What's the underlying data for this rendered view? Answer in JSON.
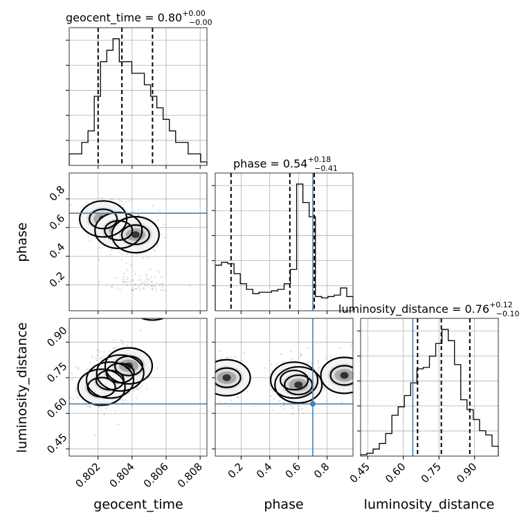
{
  "chart_data": {
    "type": "corner",
    "parameters": [
      {
        "name": "geocent_time",
        "label": "geocent_time",
        "range": [
          0.8003,
          0.8084
        ],
        "ticks": [
          0.802,
          0.804,
          0.806,
          0.808
        ],
        "tick_labels": [
          "0.802",
          "0.804",
          "0.806",
          "0.808"
        ],
        "truth": null,
        "title_main": "geocent_time = 0.80",
        "title_sup": "+0.00",
        "title_sub": "−0.00",
        "quantiles": [
          0.802,
          0.8034,
          0.8052
        ],
        "hist": [
          1,
          1,
          2,
          3,
          6,
          9,
          10,
          11,
          9,
          9,
          8,
          8,
          7,
          6,
          5,
          4,
          3,
          2,
          2,
          1,
          1,
          0.3
        ]
      },
      {
        "name": "phase",
        "label": "phase",
        "range": [
          0.02,
          0.98
        ],
        "ticks": [
          0.2,
          0.4,
          0.6,
          0.8
        ],
        "tick_labels": [
          "0.2",
          "0.4",
          "0.6",
          "0.8"
        ],
        "truth": 0.7,
        "title_main": "phase = 0.54",
        "title_sup": "+0.18",
        "title_sub": "−0.41",
        "quantiles": [
          0.13,
          0.54,
          0.71
        ],
        "hist": [
          3.2,
          3.4,
          3.3,
          2.6,
          1.9,
          1.5,
          1.2,
          1.3,
          1.3,
          1.4,
          1.5,
          1.9,
          2.9,
          8.9,
          7.6,
          6.6,
          1.0,
          0.9,
          1.0,
          1.1,
          1.6,
          1.0
        ]
      },
      {
        "name": "luminosity_distance",
        "label": "luminosity_distance",
        "range": [
          0.42,
          1.0
        ],
        "ticks": [
          0.45,
          0.6,
          0.75,
          0.9
        ],
        "tick_labels": [
          "0.45",
          "0.60",
          "0.75",
          "0.90"
        ],
        "truth": 0.64,
        "title_main": "luminosity_distance = 0.76",
        "title_sup": "+0.12",
        "title_sub": "−0.10",
        "quantiles": [
          0.66,
          0.76,
          0.88
        ],
        "hist": [
          0.1,
          0.2,
          0.5,
          0.9,
          1.6,
          2.9,
          3.5,
          4.3,
          5.2,
          6.2,
          6.3,
          7.1,
          8.0,
          9.0,
          8.2,
          6.5,
          4.0,
          3.3,
          2.6,
          1.8,
          1.5,
          0.7
        ]
      }
    ],
    "pairs": [
      {
        "x": "geocent_time",
        "y": "phase",
        "truth": [
          null,
          0.7
        ],
        "density_peaks": [
          [
            0.8023,
            0.66
          ],
          [
            0.8032,
            0.58
          ],
          [
            0.8042,
            0.55
          ],
          [
            0.804,
            0.12
          ],
          [
            0.8052,
            0.08
          ]
        ]
      },
      {
        "x": "geocent_time",
        "y": "luminosity_distance",
        "truth": [
          null,
          0.64
        ],
        "density_peaks": [
          [
            0.8022,
            0.71
          ],
          [
            0.8027,
            0.74
          ],
          [
            0.8033,
            0.77
          ],
          [
            0.8038,
            0.8
          ]
        ]
      },
      {
        "x": "phase",
        "y": "luminosity_distance",
        "truth": [
          0.7,
          0.64
        ],
        "density_peaks": [
          [
            0.1,
            0.75
          ],
          [
            0.57,
            0.74
          ],
          [
            0.6,
            0.72
          ],
          [
            0.92,
            0.76
          ]
        ]
      }
    ],
    "grid": true
  }
}
